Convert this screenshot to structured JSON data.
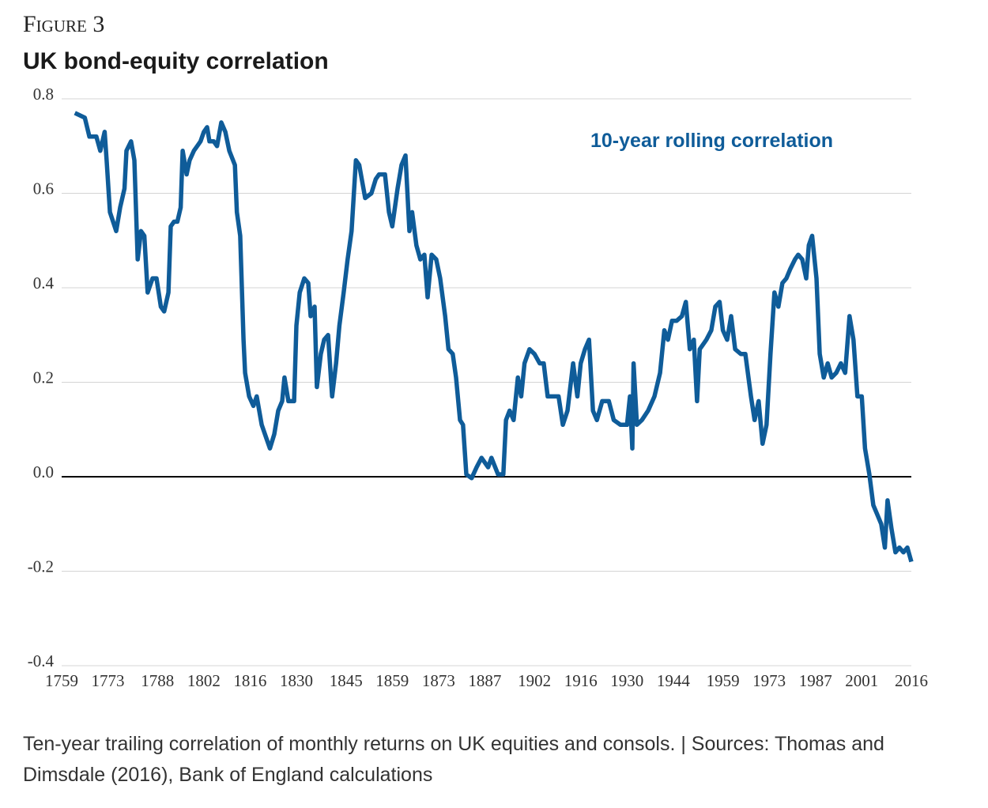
{
  "chart_data": {
    "type": "line",
    "figure_label": "Figure 3",
    "title": "UK bond-equity correlation",
    "annotation": "10-year rolling correlation",
    "caption": "Ten-year trailing correlation of monthly returns on UK equities and consols.  | Sources: Thomas and Dimsdale (2016), Bank of England calculations",
    "xlim": [
      1759,
      2016
    ],
    "xticks": [
      1759,
      1773,
      1788,
      1802,
      1816,
      1830,
      1845,
      1859,
      1873,
      1887,
      1902,
      1916,
      1930,
      1944,
      1959,
      1973,
      1987,
      2001,
      2016
    ],
    "ylim": [
      -0.4,
      0.8
    ],
    "yticks": [
      0.8,
      0.6,
      0.4,
      0.2,
      {
        "value": 0,
        "label": "0.0"
      },
      -0.2,
      -0.4
    ],
    "grid": true,
    "x": [
      1763,
      1766,
      1767.4,
      1769.5,
      1770.7,
      1772,
      1772.6,
      1773.6,
      1775.5,
      1776.7,
      1778,
      1778.6,
      1780,
      1781,
      1782,
      1783,
      1784,
      1785,
      1786.5,
      1787.7,
      1789,
      1790,
      1791.3,
      1792,
      1793,
      1794,
      1795,
      1795.6,
      1796.8,
      1797.7,
      1799,
      1800,
      1801,
      1802,
      1803,
      1803.7,
      1805,
      1806,
      1807.3,
      1808.5,
      1809.7,
      1811.4,
      1812,
      1813,
      1814,
      1814.5,
      1815.7,
      1817,
      1818,
      1819.5,
      1821,
      1822,
      1823.3,
      1824.5,
      1825.7,
      1826.4,
      1827.6,
      1829.3,
      1830,
      1831,
      1832.4,
      1833.6,
      1834.3,
      1835.5,
      1836.2,
      1837.4,
      1838.4,
      1839.6,
      1840.8,
      1842,
      1843,
      1844.3,
      1845.5,
      1846.7,
      1848,
      1849,
      1850.8,
      1852.7,
      1854,
      1855,
      1856.8,
      1858,
      1859,
      1860.6,
      1861.8,
      1863,
      1864.2,
      1865,
      1866.3,
      1867.5,
      1868.7,
      1869.7,
      1870.9,
      1872.3,
      1873.5,
      1875,
      1876,
      1877.3,
      1878.3,
      1879.5,
      1880.4,
      1881.4,
      1883,
      1884.5,
      1886,
      1888,
      1889,
      1891,
      1892.6,
      1893.4,
      1894.5,
      1895.7,
      1897,
      1898,
      1899,
      1900.5,
      1902,
      1903.6,
      1904.8,
      1906,
      1907.7,
      1909.3,
      1910.6,
      1912,
      1913.7,
      1915,
      1916,
      1917.3,
      1918.5,
      1919.7,
      1920.9,
      1922.5,
      1924.5,
      1926,
      1928,
      1930,
      1930.9,
      1931.6,
      1932,
      1933,
      1934.5,
      1936.4,
      1938.3,
      1940,
      1941.3,
      1942.4,
      1943.6,
      1945,
      1946.6,
      1947.8,
      1949,
      1950.2,
      1951.2,
      1952,
      1954,
      1955.5,
      1956.7,
      1958,
      1959,
      1960.3,
      1961.5,
      1962.7,
      1964.4,
      1965.8,
      1967.5,
      1968.6,
      1969.8,
      1971,
      1972.2,
      1973.4,
      1974.6,
      1975.8,
      1977,
      1978.2,
      1979.4,
      1980.8,
      1981.8,
      1983,
      1984.2,
      1985,
      1986,
      1987.3,
      1988.3,
      1989.5,
      1990.7,
      1991.9,
      1993.3,
      1994.7,
      1996,
      1997.3,
      1998.5,
      1999.7,
      2001,
      2002,
      2003.3,
      2004.5,
      2005.7,
      2006.9,
      2008,
      2008.8,
      2010,
      2011.2,
      2012.4,
      2013.6,
      2014.8,
      2016
    ],
    "series": [
      {
        "name": "10-year rolling correlation",
        "color": "#0f5c99",
        "values": [
          0.77,
          0.76,
          0.72,
          0.72,
          0.69,
          0.73,
          0.67,
          0.56,
          0.52,
          0.57,
          0.61,
          0.69,
          0.71,
          0.67,
          0.46,
          0.52,
          0.51,
          0.39,
          0.42,
          0.42,
          0.36,
          0.35,
          0.39,
          0.53,
          0.54,
          0.54,
          0.57,
          0.69,
          0.64,
          0.67,
          0.69,
          0.7,
          0.71,
          0.73,
          0.74,
          0.71,
          0.71,
          0.7,
          0.75,
          0.73,
          0.69,
          0.66,
          0.56,
          0.51,
          0.29,
          0.22,
          0.17,
          0.15,
          0.17,
          0.11,
          0.08,
          0.06,
          0.09,
          0.14,
          0.16,
          0.21,
          0.16,
          0.16,
          0.32,
          0.39,
          0.42,
          0.41,
          0.34,
          0.36,
          0.19,
          0.26,
          0.29,
          0.3,
          0.17,
          0.24,
          0.32,
          0.39,
          0.46,
          0.52,
          0.67,
          0.66,
          0.59,
          0.6,
          0.63,
          0.64,
          0.64,
          0.56,
          0.53,
          0.61,
          0.66,
          0.68,
          0.52,
          0.56,
          0.49,
          0.46,
          0.47,
          0.38,
          0.47,
          0.46,
          0.42,
          0.34,
          0.27,
          0.26,
          0.21,
          0.12,
          0.11,
          0.005,
          -0.003,
          0.02,
          0.04,
          0.02,
          0.04,
          0.005,
          0.005,
          0.12,
          0.14,
          0.12,
          0.21,
          0.17,
          0.24,
          0.27,
          0.26,
          0.24,
          0.24,
          0.17,
          0.17,
          0.17,
          0.11,
          0.14,
          0.24,
          0.17,
          0.24,
          0.27,
          0.29,
          0.14,
          0.12,
          0.16,
          0.16,
          0.12,
          0.11,
          0.11,
          0.17,
          0.06,
          0.24,
          0.11,
          0.12,
          0.14,
          0.17,
          0.22,
          0.31,
          0.29,
          0.33,
          0.33,
          0.34,
          0.37,
          0.27,
          0.29,
          0.16,
          0.27,
          0.29,
          0.31,
          0.36,
          0.37,
          0.31,
          0.29,
          0.34,
          0.27,
          0.26,
          0.26,
          0.17,
          0.12,
          0.16,
          0.07,
          0.11,
          0.26,
          0.39,
          0.36,
          0.41,
          0.42,
          0.44,
          0.46,
          0.47,
          0.46,
          0.42,
          0.49,
          0.51,
          0.42,
          0.26,
          0.21,
          0.24,
          0.21,
          0.22,
          0.24,
          0.22,
          0.34,
          0.29,
          0.17,
          0.17,
          0.06,
          0.005,
          -0.06,
          -0.08,
          -0.1,
          -0.15,
          -0.05,
          -0.11,
          -0.16,
          -0.15,
          -0.16,
          -0.15,
          -0.18
        ]
      }
    ]
  }
}
